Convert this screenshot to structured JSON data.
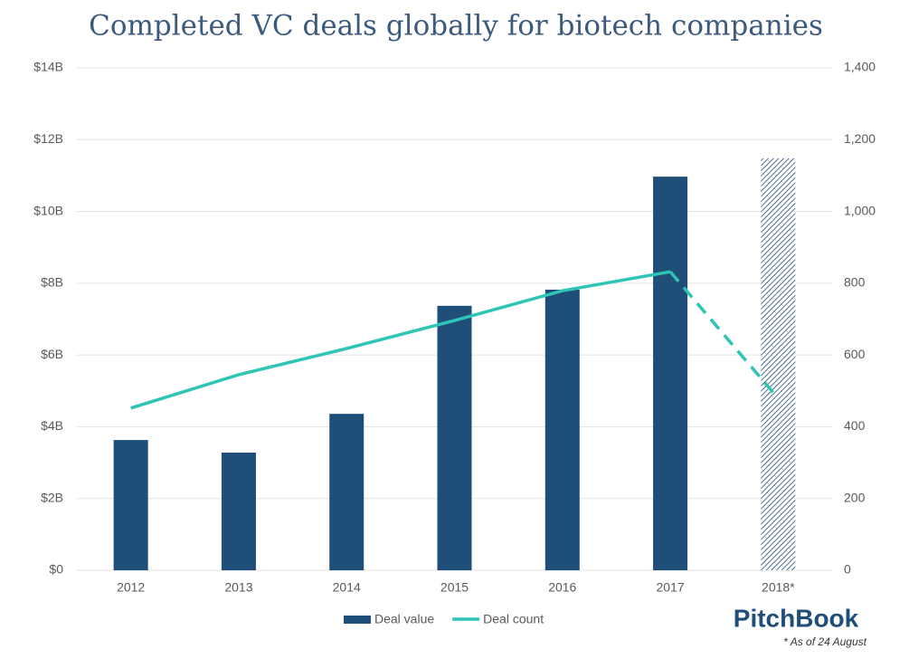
{
  "chart_data": {
    "type": "bar_line",
    "title": "Completed VC deals globally for biotech companies",
    "categories": [
      "2012",
      "2013",
      "2014",
      "2015",
      "2016",
      "2017",
      "2018*"
    ],
    "series": [
      {
        "name": "Deal value",
        "type": "bar",
        "color": "#1f4e79",
        "values": [
          3.63,
          3.28,
          4.36,
          7.37,
          7.82,
          10.97,
          11.48
        ],
        "hatched_last": true
      },
      {
        "name": "Deal count",
        "type": "line",
        "axis": "y2",
        "color": "#2ec4b6",
        "values": [
          452,
          545,
          618,
          696,
          779,
          832,
          479
        ],
        "dashed_last": true
      }
    ],
    "ylim": [
      0,
      14
    ],
    "yticks": [
      {
        "value": 0,
        "label": "$0"
      },
      {
        "value": 2,
        "label": "$2B"
      },
      {
        "value": 4,
        "label": "$4B"
      },
      {
        "value": 6,
        "label": "$6B"
      },
      {
        "value": 8,
        "label": "$8B"
      },
      {
        "value": 10,
        "label": "$10B"
      },
      {
        "value": 12,
        "label": "$12B"
      },
      {
        "value": 14,
        "label": "$14B"
      }
    ],
    "y2lim": [
      0,
      1400
    ],
    "y2ticks": [
      0,
      200,
      400,
      600,
      800,
      {
        "value": 1000,
        "label": "1,000"
      },
      {
        "value": 1200,
        "label": "1,200"
      },
      {
        "value": 1400,
        "label": "1,400"
      }
    ],
    "grid": true,
    "source": "PitchBook",
    "footnote": "* As of 24 August"
  }
}
